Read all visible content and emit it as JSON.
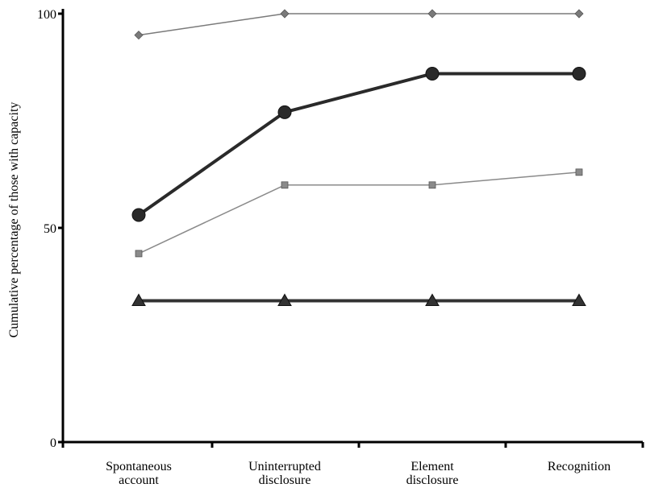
{
  "chart_data": {
    "type": "line",
    "title": "",
    "xlabel": "",
    "ylabel": "Cumulative percentage of those with capacity",
    "categories": [
      [
        "Spontaneous",
        "account"
      ],
      [
        "Uninterrupted",
        "disclosure"
      ],
      [
        "Element",
        "disclosure"
      ],
      [
        "Recognition"
      ]
    ],
    "y_ticks": [
      "0",
      "50",
      "100"
    ],
    "ylim": [
      0,
      100
    ],
    "grid": false,
    "legend": "none",
    "series": [
      {
        "values": [
          95,
          100,
          100,
          100
        ],
        "marker": "diamond",
        "color": "#7a7a7a",
        "stroke_width": 1.5,
        "marker_size": 5
      },
      {
        "values": [
          53,
          77,
          86,
          86
        ],
        "marker": "circle",
        "color": "#2a2a2a",
        "stroke_width": 4,
        "marker_size": 8
      },
      {
        "values": [
          44,
          60,
          60,
          63
        ],
        "marker": "square",
        "color": "#8a8a8a",
        "stroke_width": 1.5,
        "marker_size": 4
      },
      {
        "values": [
          33,
          33,
          33,
          33
        ],
        "marker": "triangle",
        "color": "#333333",
        "stroke_width": 4,
        "marker_size": 8
      }
    ]
  }
}
